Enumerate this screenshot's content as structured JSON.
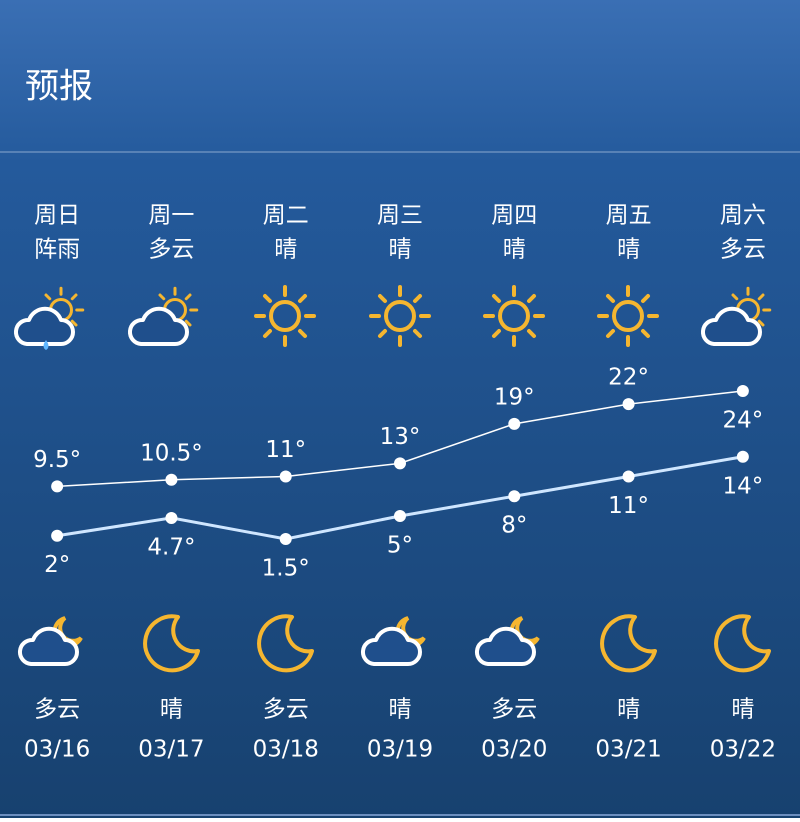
{
  "header": {
    "title": "预报"
  },
  "days": [
    {
      "weekday": "周日",
      "day_weather": "阵雨",
      "night_weather": "多云",
      "date": "03/16"
    },
    {
      "weekday": "周一",
      "day_weather": "多云",
      "night_weather": "晴",
      "date": "03/17"
    },
    {
      "weekday": "周二",
      "day_weather": "晴",
      "night_weather": "多云",
      "date": "03/18"
    },
    {
      "weekday": "周三",
      "day_weather": "晴",
      "night_weather": "晴",
      "date": "03/19"
    },
    {
      "weekday": "周四",
      "day_weather": "晴",
      "night_weather": "多云",
      "date": "03/20"
    },
    {
      "weekday": "周五",
      "day_weather": "晴",
      "night_weather": "晴",
      "date": "03/21"
    },
    {
      "weekday": "周六",
      "day_weather": "多云",
      "night_weather": "晴",
      "date": "03/22"
    }
  ],
  "chart_data": {
    "type": "line",
    "series": [
      {
        "color": "#ffffff",
        "values": [
          9.5,
          10.5,
          11,
          13,
          19,
          22,
          24
        ],
        "value_labels": [
          "9.5°",
          "10.5°",
          "11°",
          "13°",
          "19°",
          "22°",
          "24°"
        ]
      },
      {
        "color": "#cfe6ff",
        "values": [
          2,
          4.7,
          1.5,
          5,
          8,
          11,
          14
        ],
        "value_labels": [
          "2°",
          "4.7°",
          "1.5°",
          "5°",
          "8°",
          "11°",
          "14°"
        ]
      }
    ]
  }
}
